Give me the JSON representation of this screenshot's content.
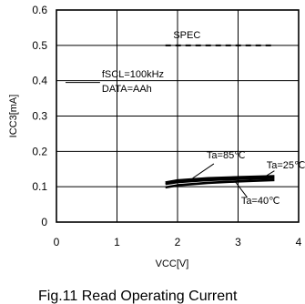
{
  "chart_data": {
    "type": "line",
    "title": "Fig.11 Read Operating Current",
    "xlabel": "VCC[V]",
    "ylabel": "ICC3[mA]",
    "xlim": [
      0,
      4
    ],
    "ylim": [
      0,
      0.6
    ],
    "x_ticks": [
      "0",
      "1",
      "2",
      "3",
      "4"
    ],
    "y_ticks": [
      "0",
      "0.1",
      "0.2",
      "0.3",
      "0.4",
      "0.5",
      "0.6"
    ],
    "grid": true,
    "conditions": [
      "fSCL=100kHz",
      "DATA=AAh"
    ],
    "spec": {
      "label": "SPEC",
      "x": [
        1.8,
        3.6
      ],
      "value": 0.5
    },
    "series": [
      {
        "name": "Ta=85℃",
        "x": [
          1.8,
          2.0,
          2.5,
          3.0,
          3.6
        ],
        "values": [
          0.112,
          0.118,
          0.124,
          0.127,
          0.13
        ]
      },
      {
        "name": "Ta=25℃",
        "x": [
          1.8,
          2.0,
          2.5,
          3.0,
          3.6
        ],
        "values": [
          0.108,
          0.113,
          0.119,
          0.122,
          0.125
        ]
      },
      {
        "name": "Ta=40℃",
        "x": [
          1.8,
          2.0,
          2.5,
          3.0,
          3.6
        ],
        "values": [
          0.098,
          0.104,
          0.111,
          0.115,
          0.119
        ]
      }
    ]
  }
}
